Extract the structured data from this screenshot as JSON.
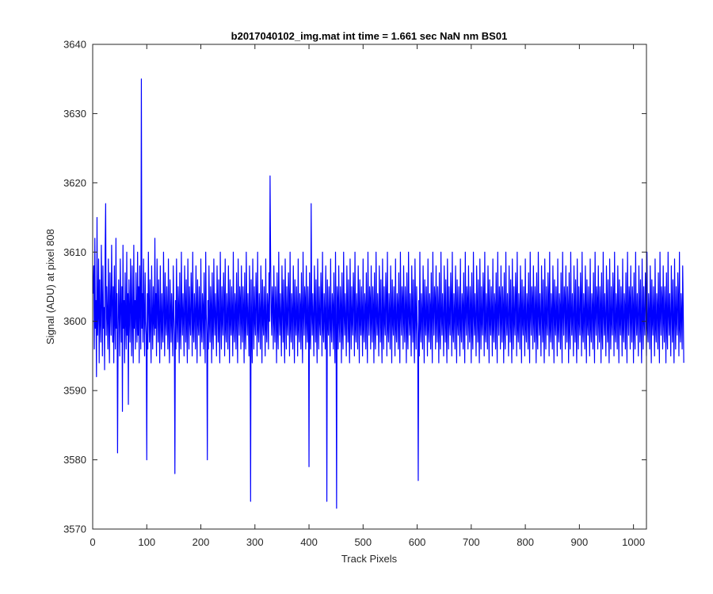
{
  "chart_data": {
    "type": "line",
    "title": "b2017040102_img.mat int time = 1.661 sec  NaN nm BS01",
    "xlabel": "Track Pixels",
    "ylabel": "Signal (ADU) at pixel 808",
    "xlim": [
      0,
      1024
    ],
    "ylim": [
      3570,
      3640
    ],
    "xticks": [
      0,
      100,
      200,
      300,
      400,
      500,
      600,
      700,
      800,
      900,
      1000
    ],
    "yticks": [
      3570,
      3580,
      3590,
      3600,
      3610,
      3620,
      3630,
      3640
    ],
    "grid": false,
    "legend": "none",
    "color": "#0000ff",
    "series": [
      {
        "x_start": 1,
        "x_step": 1,
        "values": [
          3604,
          3608,
          3596,
          3612,
          3599,
          3603,
          3592,
          3615,
          3598,
          3601,
          3609,
          3594,
          3606,
          3600,
          3597,
          3611,
          3603,
          3595,
          3608,
          3599,
          3602,
          3593,
          3610,
          3617,
          3598,
          3605,
          3601,
          3596,
          3609,
          3600,
          3594,
          3607,
          3602,
          3598,
          3611,
          3603,
          3597,
          3605,
          3594,
          3608,
          3600,
          3596,
          3612,
          3599,
          3604,
          3581,
          3598,
          3606,
          3601,
          3595,
          3609,
          3602,
          3597,
          3605,
          3587,
          3611,
          3599,
          3603,
          3594,
          3607,
          3600,
          3596,
          3610,
          3598,
          3604,
          3588,
          3606,
          3601,
          3597,
          3609,
          3602,
          3595,
          3608,
          3600,
          3594,
          3611,
          3599,
          3603,
          3596,
          3607,
          3601,
          3597,
          3610,
          3598,
          3605,
          3594,
          3608,
          3602,
          3596,
          3635,
          3599,
          3604,
          3597,
          3609,
          3601,
          3595,
          3607,
          3600,
          3598,
          3580,
          3604,
          3596,
          3610,
          3602,
          3597,
          3606,
          3599,
          3594,
          3608,
          3601,
          3596,
          3605,
          3600,
          3598,
          3612,
          3599,
          3604,
          3595,
          3609,
          3602,
          3597,
          3606,
          3600,
          3594,
          3608,
          3601,
          3596,
          3604,
          3599,
          3597,
          3610,
          3602,
          3595,
          3607,
          3600,
          3598,
          3605,
          3601,
          3596,
          3609,
          3599,
          3594,
          3606,
          3602,
          3597,
          3604,
          3600,
          3595,
          3608,
          3601,
          3598,
          3578,
          3603,
          3596,
          3609,
          3600,
          3597,
          3605,
          3602,
          3594,
          3607,
          3599,
          3596,
          3610,
          3601,
          3598,
          3604,
          3600,
          3595,
          3608,
          3602,
          3597,
          3606,
          3599,
          3594,
          3609,
          3601,
          3596,
          3605,
          3600,
          3598,
          3607,
          3603,
          3595,
          3610,
          3599,
          3597,
          3604,
          3601,
          3596,
          3608,
          3602,
          3594,
          3606,
          3600,
          3598,
          3605,
          3601,
          3595,
          3609,
          3599,
          3597,
          3604,
          3602,
          3596,
          3607,
          3600,
          3594,
          3610,
          3601,
          3598,
          3580,
          3603,
          3596,
          3608,
          3600,
          3597,
          3605,
          3602,
          3594,
          3607,
          3599,
          3596,
          3609,
          3601,
          3598,
          3604,
          3600,
          3595,
          3608,
          3602,
          3597,
          3606,
          3599,
          3594,
          3610,
          3601,
          3596,
          3605,
          3600,
          3598,
          3607,
          3603,
          3595,
          3609,
          3599,
          3597,
          3604,
          3601,
          3596,
          3608,
          3602,
          3594,
          3606,
          3600,
          3598,
          3605,
          3601,
          3595,
          3610,
          3599,
          3597,
          3604,
          3602,
          3596,
          3607,
          3600,
          3594,
          3609,
          3601,
          3598,
          3605,
          3603,
          3596,
          3608,
          3600,
          3597,
          3605,
          3602,
          3594,
          3607,
          3599,
          3596,
          3610,
          3601,
          3598,
          3604,
          3600,
          3595,
          3608,
          3602,
          3574,
          3606,
          3599,
          3594,
          3609,
          3601,
          3596,
          3605,
          3600,
          3598,
          3607,
          3603,
          3595,
          3610,
          3599,
          3597,
          3604,
          3601,
          3596,
          3608,
          3602,
          3594,
          3606,
          3600,
          3598,
          3605,
          3601,
          3595,
          3609,
          3599,
          3597,
          3604,
          3602,
          3596,
          3607,
          3600,
          3621,
          3609,
          3601,
          3598,
          3605,
          3603,
          3596,
          3608,
          3600,
          3597,
          3605,
          3602,
          3594,
          3607,
          3599,
          3596,
          3610,
          3601,
          3598,
          3604,
          3600,
          3595,
          3608,
          3602,
          3597,
          3606,
          3599,
          3594,
          3609,
          3601,
          3596,
          3605,
          3600,
          3598,
          3607,
          3603,
          3595,
          3610,
          3599,
          3597,
          3604,
          3601,
          3596,
          3608,
          3602,
          3594,
          3606,
          3600,
          3598,
          3605,
          3601,
          3595,
          3609,
          3599,
          3597,
          3604,
          3602,
          3596,
          3607,
          3600,
          3594,
          3610,
          3601,
          3598,
          3605,
          3603,
          3596,
          3608,
          3600,
          3597,
          3605,
          3602,
          3579,
          3607,
          3599,
          3596,
          3617,
          3601,
          3598,
          3604,
          3600,
          3595,
          3608,
          3602,
          3597,
          3606,
          3599,
          3594,
          3609,
          3601,
          3596,
          3605,
          3600,
          3598,
          3607,
          3603,
          3595,
          3610,
          3599,
          3597,
          3604,
          3601,
          3596,
          3608,
          3602,
          3574,
          3606,
          3600,
          3598,
          3605,
          3601,
          3595,
          3609,
          3599,
          3597,
          3604,
          3602,
          3596,
          3607,
          3600,
          3594,
          3610,
          3601,
          3573,
          3605,
          3603,
          3596,
          3608,
          3600,
          3597,
          3605,
          3602,
          3594,
          3607,
          3599,
          3596,
          3610,
          3601,
          3598,
          3604,
          3600,
          3595,
          3608,
          3602,
          3597,
          3606,
          3599,
          3594,
          3609,
          3601,
          3596,
          3605,
          3600,
          3598,
          3607,
          3603,
          3595,
          3610,
          3599,
          3597,
          3604,
          3601,
          3596,
          3608,
          3602,
          3594,
          3606,
          3600,
          3598,
          3605,
          3601,
          3595,
          3609,
          3599,
          3597,
          3604,
          3602,
          3596,
          3607,
          3600,
          3594,
          3610,
          3601,
          3598,
          3605,
          3603,
          3596,
          3608,
          3600,
          3597,
          3605,
          3602,
          3594,
          3607,
          3599,
          3596,
          3610,
          3601,
          3598,
          3604,
          3600,
          3595,
          3608,
          3602,
          3597,
          3606,
          3599,
          3594,
          3609,
          3601,
          3596,
          3605,
          3600,
          3598,
          3607,
          3603,
          3595,
          3610,
          3599,
          3597,
          3604,
          3601,
          3596,
          3608,
          3602,
          3594,
          3606,
          3600,
          3598,
          3605,
          3601,
          3595,
          3609,
          3599,
          3597,
          3604,
          3602,
          3596,
          3607,
          3600,
          3594,
          3610,
          3601,
          3598,
          3605,
          3603,
          3596,
          3608,
          3600,
          3597,
          3605,
          3602,
          3594,
          3607,
          3599,
          3596,
          3610,
          3601,
          3598,
          3604,
          3600,
          3595,
          3608,
          3602,
          3597,
          3606,
          3599,
          3594,
          3609,
          3601,
          3596,
          3605,
          3600,
          3598,
          3577,
          3603,
          3595,
          3610,
          3599,
          3597,
          3604,
          3601,
          3596,
          3608,
          3602,
          3594,
          3606,
          3600,
          3598,
          3605,
          3601,
          3595,
          3609,
          3599,
          3597,
          3604,
          3602,
          3596,
          3607,
          3600,
          3594,
          3610,
          3601,
          3598,
          3605,
          3603,
          3596,
          3608,
          3600,
          3597,
          3605,
          3602,
          3594,
          3607,
          3599,
          3596,
          3610,
          3601,
          3598,
          3604,
          3600,
          3595,
          3608,
          3602,
          3597,
          3606,
          3599,
          3594,
          3609,
          3601,
          3596,
          3605,
          3600,
          3598,
          3607,
          3603,
          3595,
          3610,
          3599,
          3597,
          3604,
          3601,
          3596,
          3608,
          3602,
          3594,
          3606,
          3600,
          3598,
          3605,
          3601,
          3595,
          3609,
          3599,
          3597,
          3604,
          3602,
          3596,
          3607,
          3600,
          3594,
          3610,
          3601,
          3598,
          3605,
          3603,
          3596,
          3608,
          3600,
          3597,
          3605,
          3602,
          3594,
          3607,
          3599,
          3596,
          3610,
          3601,
          3598,
          3604,
          3600,
          3595,
          3608,
          3602,
          3597,
          3606,
          3599,
          3594,
          3609,
          3601,
          3596,
          3605,
          3600,
          3598,
          3607,
          3603,
          3595,
          3610,
          3599,
          3597,
          3604,
          3601,
          3596,
          3608,
          3602,
          3594,
          3606,
          3600,
          3598,
          3605,
          3601,
          3595,
          3609,
          3599,
          3597,
          3604,
          3602,
          3596,
          3607,
          3600,
          3594,
          3610,
          3601,
          3598,
          3605,
          3603,
          3596,
          3608,
          3600,
          3597,
          3605,
          3602,
          3594,
          3607,
          3599,
          3596,
          3610,
          3601,
          3598,
          3604,
          3600,
          3595,
          3608,
          3602,
          3597,
          3606,
          3599,
          3594,
          3609,
          3601,
          3596,
          3605,
          3600,
          3598,
          3607,
          3603,
          3595,
          3610,
          3599,
          3597,
          3604,
          3601,
          3596,
          3608,
          3602,
          3594,
          3606,
          3600,
          3598,
          3605,
          3601,
          3595,
          3609,
          3599,
          3597,
          3604,
          3602,
          3596,
          3607,
          3600,
          3594,
          3610,
          3601,
          3598,
          3605,
          3603,
          3596,
          3608,
          3600,
          3597,
          3605,
          3602,
          3594,
          3607,
          3599,
          3596,
          3610,
          3601,
          3598,
          3604,
          3600,
          3595,
          3608,
          3602,
          3597,
          3606,
          3599,
          3594,
          3609,
          3601,
          3596,
          3605,
          3600,
          3598,
          3607,
          3603,
          3595,
          3610,
          3599,
          3597,
          3604,
          3601,
          3596,
          3608,
          3602,
          3594,
          3606,
          3600,
          3598,
          3605,
          3601,
          3595,
          3609,
          3599,
          3597,
          3604,
          3602,
          3596,
          3607,
          3600,
          3594,
          3610,
          3601,
          3598,
          3605,
          3603,
          3596,
          3608,
          3600,
          3597,
          3605,
          3602,
          3594,
          3607,
          3599,
          3596,
          3610,
          3601,
          3598,
          3604,
          3600,
          3595,
          3608,
          3602,
          3597,
          3606,
          3599,
          3594,
          3609,
          3601,
          3596,
          3605,
          3600,
          3598,
          3607,
          3603,
          3595,
          3610,
          3599,
          3597,
          3604,
          3601,
          3596,
          3608,
          3602,
          3594,
          3606,
          3600,
          3598,
          3605,
          3601,
          3595,
          3609,
          3599,
          3597,
          3604,
          3602,
          3596,
          3607,
          3600,
          3594,
          3610,
          3601,
          3598,
          3605,
          3603,
          3596,
          3608,
          3600,
          3597,
          3605,
          3602,
          3594,
          3607,
          3599,
          3596,
          3610,
          3601,
          3598,
          3604,
          3600,
          3595,
          3608,
          3602,
          3597,
          3606,
          3599,
          3594,
          3609,
          3601,
          3596,
          3605,
          3600,
          3598,
          3607,
          3603,
          3595,
          3610,
          3599,
          3597,
          3604,
          3601,
          3596,
          3608,
          3602,
          3594,
          3606,
          3600,
          3598,
          3605,
          3601,
          3595,
          3609,
          3599,
          3597,
          3604,
          3602,
          3596,
          3607,
          3600,
          3594,
          3610,
          3601,
          3598,
          3605,
          3603,
          3596,
          3608,
          3600,
          3597,
          3605,
          3602,
          3594,
          3607,
          3599,
          3596,
          3610,
          3601,
          3598,
          3604,
          3600,
          3595,
          3608,
          3602,
          3597,
          3606,
          3599,
          3594,
          3609,
          3601,
          3596,
          3605,
          3600,
          3598,
          3607,
          3603,
          3595,
          3610,
          3599,
          3597,
          3604,
          3601,
          3596,
          3608,
          3602,
          3594,
          3606,
          3600,
          3598,
          3605,
          3601,
          3595,
          3609,
          3599,
          3597,
          3604,
          3602,
          3596,
          3607,
          3600,
          3594,
          3610,
          3601,
          3598,
          3605,
          3603,
          3596,
          3608,
          3600,
          3597,
          3605,
          3602,
          3594,
          3607,
          3599,
          3596,
          3610,
          3601,
          3598,
          3604,
          3600,
          3595,
          3608,
          3602,
          3597,
          3606,
          3599,
          3594,
          3609,
          3601,
          3596,
          3605,
          3600,
          3598,
          3607,
          3603,
          3595,
          3610,
          3599,
          3597,
          3604,
          3601,
          3596,
          3608,
          3602,
          3594
        ]
      }
    ]
  }
}
